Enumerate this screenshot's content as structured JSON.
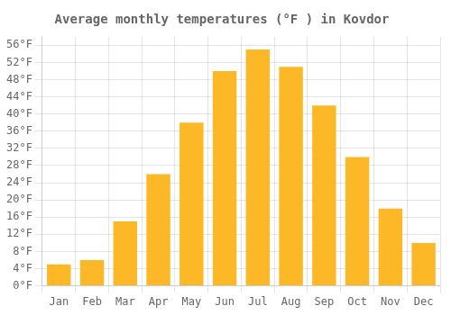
{
  "chart_data": {
    "type": "bar",
    "title": "Average monthly temperatures (°F ) in Kovdor",
    "categories": [
      "Jan",
      "Feb",
      "Mar",
      "Apr",
      "May",
      "Jun",
      "Jul",
      "Aug",
      "Sep",
      "Oct",
      "Nov",
      "Dec"
    ],
    "values": [
      5,
      6,
      15,
      26,
      38,
      50,
      55,
      51,
      42,
      30,
      18,
      10
    ],
    "color": "#FDB827",
    "ylim": [
      0,
      58
    ],
    "yticks": [
      {
        "value": 0,
        "label": "0°F"
      },
      {
        "value": 4,
        "label": "4°F"
      },
      {
        "value": 8,
        "label": "8°F"
      },
      {
        "value": 12,
        "label": "12°F"
      },
      {
        "value": 16,
        "label": "16°F"
      },
      {
        "value": 20,
        "label": "20°F"
      },
      {
        "value": 24,
        "label": "24°F"
      },
      {
        "value": 28,
        "label": "28°F"
      },
      {
        "value": 32,
        "label": "32°F"
      },
      {
        "value": 36,
        "label": "36°F"
      },
      {
        "value": 40,
        "label": "40°F"
      },
      {
        "value": 44,
        "label": "44°F"
      },
      {
        "value": 48,
        "label": "48°F"
      },
      {
        "value": 52,
        "label": "52°F"
      },
      {
        "value": 56,
        "label": "56°F"
      }
    ],
    "grid": true
  }
}
